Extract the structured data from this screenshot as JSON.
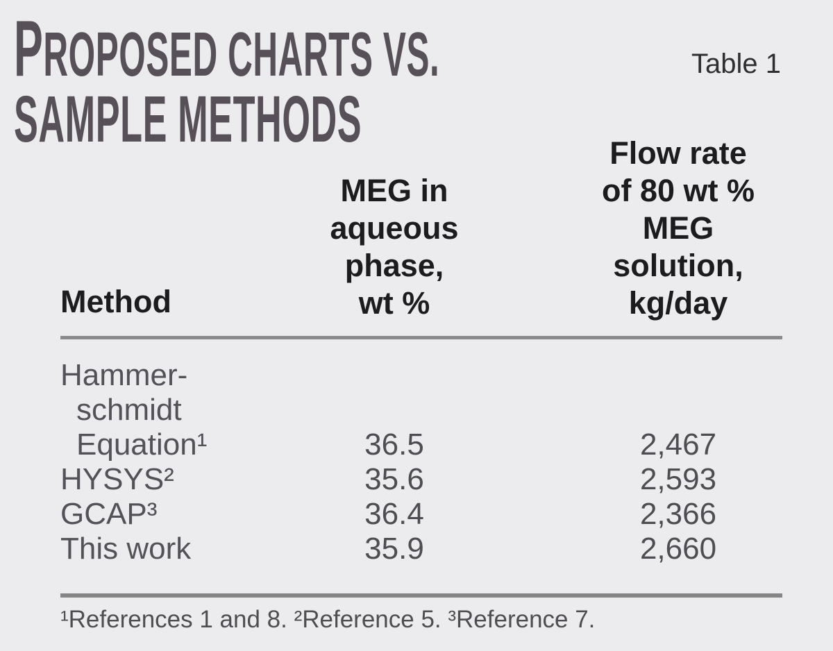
{
  "page": {
    "background": "#ECEBEE"
  },
  "header": {
    "title_line1_initial": "P",
    "title_line1_rest": "ROPOSED CHARTS VS.",
    "title_line2": "SAMPLE METHODS",
    "table_label": "Table 1"
  },
  "table": {
    "column_headers": {
      "method": "Method",
      "meg_lines": [
        "MEG in",
        "aqueous",
        "phase,",
        "wt %"
      ],
      "flow_lines": [
        "Flow rate",
        "of 80 wt %",
        "MEG",
        "solution,",
        "kg/day"
      ]
    },
    "rows": [
      {
        "method_lines": [
          "Hammer-",
          "schmidt",
          "Equation¹"
        ],
        "meg": "36.5",
        "flow": "2,467"
      },
      {
        "method_lines": [
          "HYSYS²"
        ],
        "meg": "35.6",
        "flow": "2,593"
      },
      {
        "method_lines": [
          "GCAP³"
        ],
        "meg": "36.4",
        "flow": "2,366"
      },
      {
        "method_lines": [
          "This work"
        ],
        "meg": "35.9",
        "flow": "2,660"
      }
    ],
    "footnote": "¹References 1 and 8. ²Reference 5. ³Reference 7."
  },
  "colors": {
    "background": "#ECEBEE",
    "title_text": "#575058",
    "header_text": "#1C1C1E",
    "body_text": "#525258",
    "rule": "#8A8A8A"
  },
  "chart_data": {
    "type": "table",
    "title": "Proposed charts vs. sample methods",
    "subtitle": "Table 1",
    "columns": [
      "Method",
      "MEG in aqueous phase, wt %",
      "Flow rate of 80 wt % MEG solution, kg/day"
    ],
    "rows": [
      {
        "method": "Hammerschmidt Equation¹",
        "meg_in_aqueous_phase_wt_pct": 36.5,
        "flow_rate_kg_per_day": 2467
      },
      {
        "method": "HYSYS²",
        "meg_in_aqueous_phase_wt_pct": 35.6,
        "flow_rate_kg_per_day": 2593
      },
      {
        "method": "GCAP³",
        "meg_in_aqueous_phase_wt_pct": 36.4,
        "flow_rate_kg_per_day": 2366
      },
      {
        "method": "This work",
        "meg_in_aqueous_phase_wt_pct": 35.9,
        "flow_rate_kg_per_day": 2660
      }
    ],
    "footnote": "¹References 1 and 8. ²Reference 5. ³Reference 7.",
    "layout": {
      "grid": false,
      "top_rule": true,
      "bottom_rule": true,
      "value_columns_centered": true
    }
  }
}
